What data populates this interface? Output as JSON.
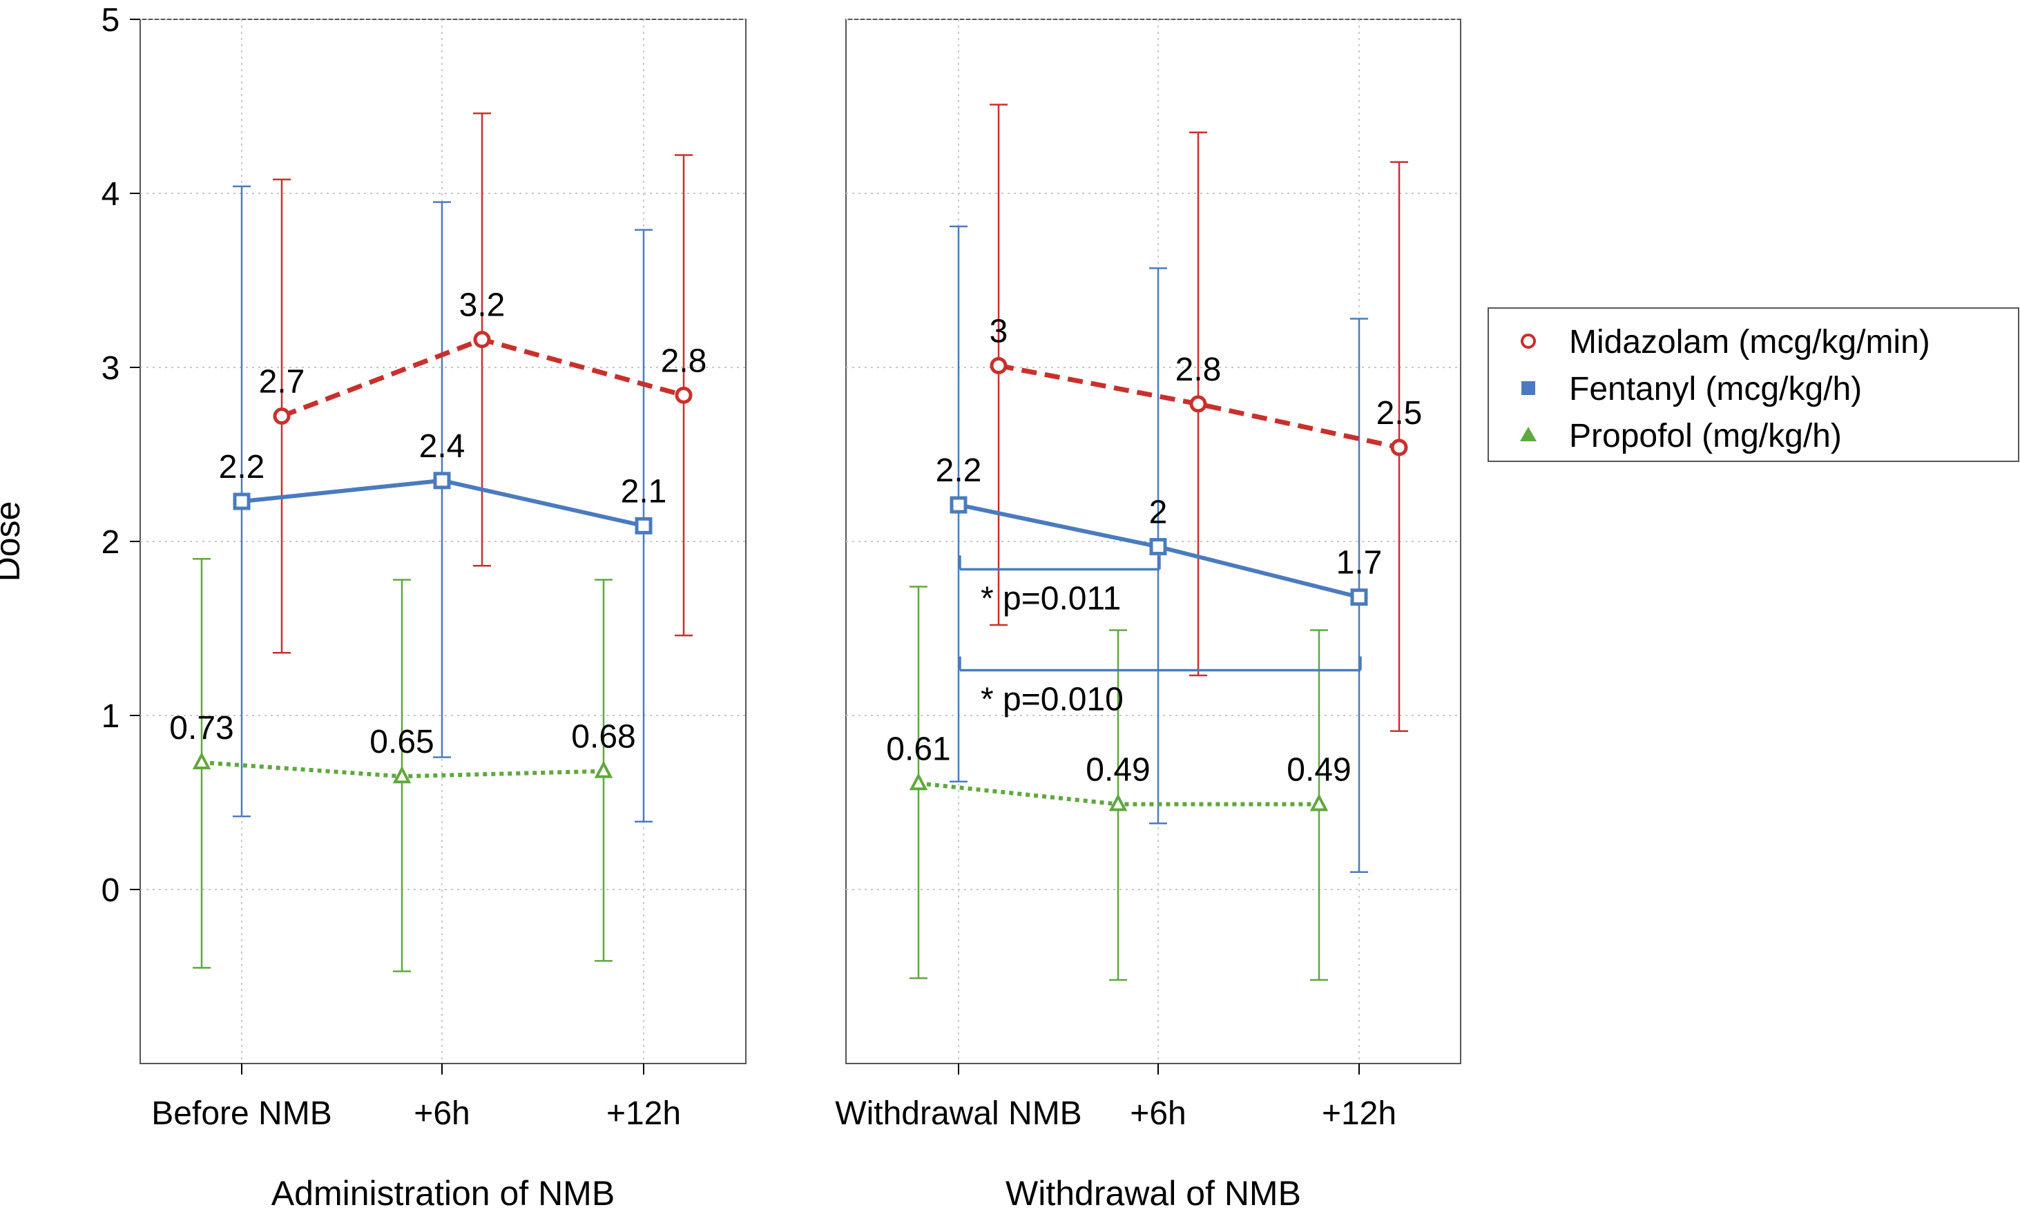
{
  "chart_data": {
    "type": "line",
    "ylabel": "Dose",
    "ylim": [
      -1,
      5
    ],
    "yticks": [
      "0",
      "1",
      "2",
      "3",
      "4",
      "5"
    ],
    "grid": true,
    "legend_position": "right",
    "colors": {
      "midazolam": "#c9302c",
      "fentanyl": "#4a7bbf",
      "propofol": "#5fa83e"
    },
    "series": [
      {
        "key": "midazolam",
        "name": "Midazolam (mcg/kg/min)",
        "style": "dashed",
        "marker": "circle"
      },
      {
        "key": "fentanyl",
        "name": "Fentanyl (mcg/kg/h)",
        "style": "solid",
        "marker": "square"
      },
      {
        "key": "propofol",
        "name": "Propofol (mg/kg/h)",
        "style": "dotted",
        "marker": "triangle"
      }
    ],
    "panels": [
      {
        "xlabel": "Administration of NMB",
        "categories": [
          "Before NMB",
          "+6h",
          "+12h"
        ],
        "midazolam": {
          "values": [
            2.72,
            3.16,
            2.84
          ],
          "labels": [
            "2.7",
            "3.2",
            "2.8"
          ],
          "lower": [
            1.36,
            1.86,
            1.46
          ],
          "upper": [
            4.08,
            4.46,
            4.22
          ]
        },
        "fentanyl": {
          "values": [
            2.23,
            2.35,
            2.09
          ],
          "labels": [
            "2.2",
            "2.4",
            "2.1"
          ],
          "lower": [
            0.42,
            0.76,
            0.39
          ],
          "upper": [
            4.04,
            3.95,
            3.79
          ]
        },
        "propofol": {
          "values": [
            0.73,
            0.65,
            0.68
          ],
          "labels": [
            "0.73",
            "0.65",
            "0.68"
          ],
          "lower": [
            -0.45,
            -0.47,
            -0.41
          ],
          "upper": [
            1.9,
            1.78,
            1.78
          ]
        },
        "annotations": []
      },
      {
        "xlabel": "Withdrawal of NMB",
        "categories": [
          "Withdrawal NMB",
          "+6h",
          "+12h"
        ],
        "midazolam": {
          "values": [
            3.01,
            2.79,
            2.54
          ],
          "labels": [
            "3",
            "2.8",
            "2.5"
          ],
          "lower": [
            1.52,
            1.23,
            0.91
          ],
          "upper": [
            4.51,
            4.35,
            4.18
          ]
        },
        "fentanyl": {
          "values": [
            2.21,
            1.97,
            1.68
          ],
          "labels": [
            "2.2",
            "2",
            "1.7"
          ],
          "lower": [
            0.62,
            0.38,
            0.1
          ],
          "upper": [
            3.81,
            3.57,
            3.28
          ]
        },
        "propofol": {
          "values": [
            0.61,
            0.49,
            0.49
          ],
          "labels": [
            "0.61",
            "0.49",
            "0.49"
          ],
          "lower": [
            -0.51,
            -0.52,
            -0.52
          ],
          "upper": [
            1.74,
            1.49,
            1.49
          ]
        },
        "annotations": [
          {
            "text": "* p=0.011",
            "from": 0,
            "to": 1,
            "level": 1.84
          },
          {
            "text": "* p=0.010",
            "from": 0,
            "to": 2,
            "level": 1.26
          }
        ]
      }
    ]
  }
}
